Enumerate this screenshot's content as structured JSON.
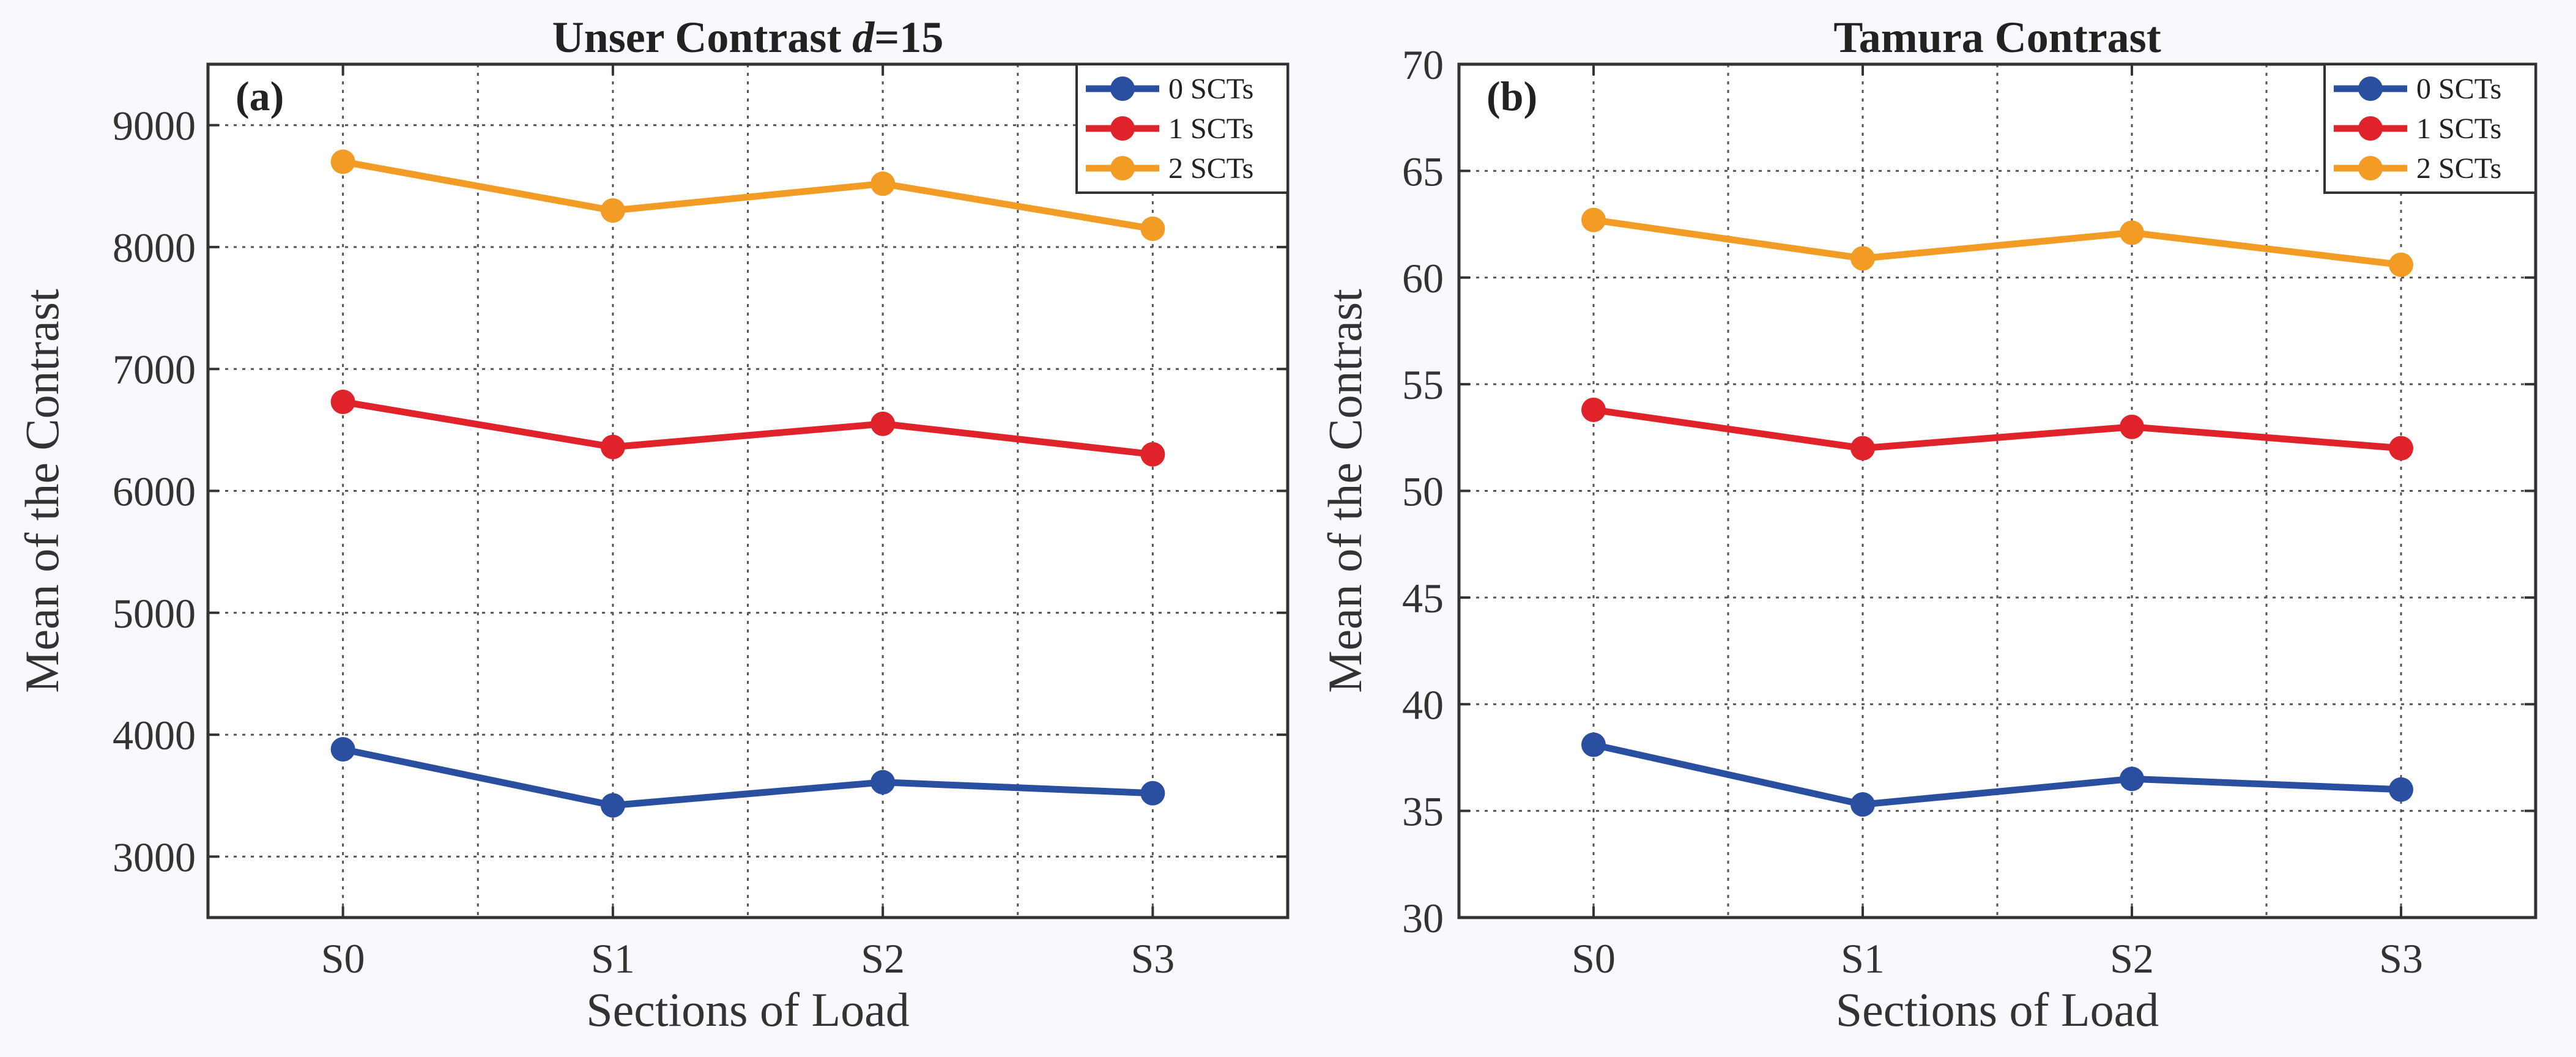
{
  "chart_data": [
    {
      "panel": "(a)",
      "type": "line",
      "title_prefix": "Unser Contrast ",
      "title_italic": "d",
      "title_suffix": "=15",
      "xlabel": "Sections of Load",
      "ylabel": "Mean of the Contrast",
      "categories": [
        "S0",
        "S1",
        "S2",
        "S3"
      ],
      "ylim": [
        2500,
        9500
      ],
      "yticks": [
        3000,
        4000,
        5000,
        6000,
        7000,
        8000,
        9000
      ],
      "grid": true,
      "legend_position": "top-right",
      "series": [
        {
          "name": "0 SCTs",
          "color": "#2a4fa0",
          "values": [
            3880,
            3420,
            3610,
            3520
          ]
        },
        {
          "name": "1 SCTs",
          "color": "#e0232a",
          "values": [
            6730,
            6360,
            6550,
            6300
          ]
        },
        {
          "name": "2 SCTs",
          "color": "#f39c25",
          "values": [
            8700,
            8300,
            8520,
            8150
          ]
        }
      ]
    },
    {
      "panel": "(b)",
      "type": "line",
      "title_prefix": "Tamura Contrast",
      "title_italic": "",
      "title_suffix": "",
      "xlabel": "Sections of Load",
      "ylabel": "Mean of the Contrast",
      "categories": [
        "S0",
        "S1",
        "S2",
        "S3"
      ],
      "ylim": [
        30,
        70
      ],
      "yticks": [
        30,
        35,
        40,
        45,
        50,
        55,
        60,
        65,
        70
      ],
      "grid": true,
      "legend_position": "top-right",
      "series": [
        {
          "name": "0 SCTs",
          "color": "#2a4fa0",
          "values": [
            38.1,
            35.3,
            36.5,
            36.0
          ]
        },
        {
          "name": "1 SCTs",
          "color": "#e0232a",
          "values": [
            53.8,
            52.0,
            53.0,
            52.0
          ]
        },
        {
          "name": "2 SCTs",
          "color": "#f39c25",
          "values": [
            62.7,
            60.9,
            62.1,
            60.6
          ]
        }
      ]
    }
  ]
}
